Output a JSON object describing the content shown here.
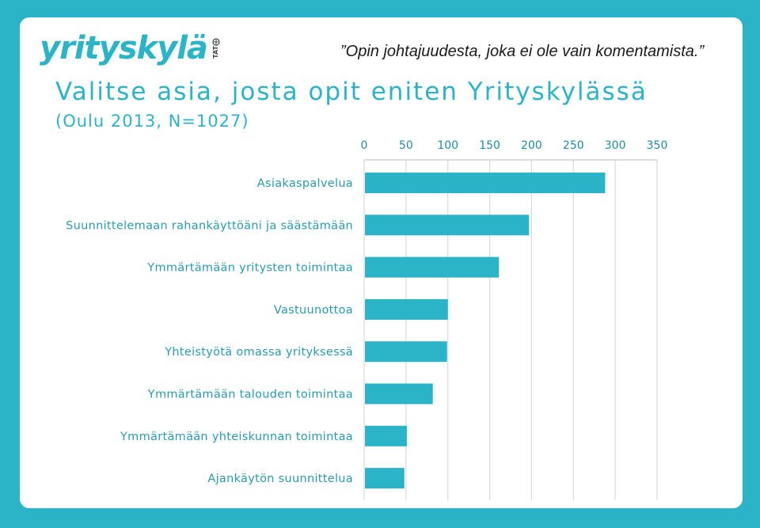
{
  "header": {
    "logo_text": "yrityskylä",
    "logo_side_text": "TAT",
    "tagline": "”Opin johtajuudesta, joka ei ole vain komentamista.”"
  },
  "colors": {
    "background": "#2bb3c8",
    "accent": "#2bb3c8",
    "bar": "#2bb3c8",
    "label": "#2a9ab0"
  },
  "chart_data": {
    "type": "bar",
    "orientation": "horizontal",
    "title": "Valitse asia, josta opit eniten Yrityskylässä",
    "subtitle": "(Oulu 2013, N=1027)",
    "xlabel": "",
    "ylabel": "",
    "xlim": [
      0,
      350
    ],
    "ticks": [
      0,
      50,
      100,
      150,
      200,
      250,
      300,
      350
    ],
    "axis_position": "top",
    "grid": true,
    "categories": [
      "Asiakaspalvelua",
      "Suunnittelemaan rahankäyttöäni ja säästämään",
      "Ymmärtämään yritysten toimintaa",
      "Vastuunottoa",
      "Yhteistyötä omassa yrityksessä",
      "Ymmärtämään talouden toimintaa",
      "Ymmärtämään yhteiskunnan toimintaa",
      "Ajankäytön suunnittelua"
    ],
    "values": [
      288,
      197,
      161,
      100,
      99,
      82,
      51,
      48
    ]
  }
}
